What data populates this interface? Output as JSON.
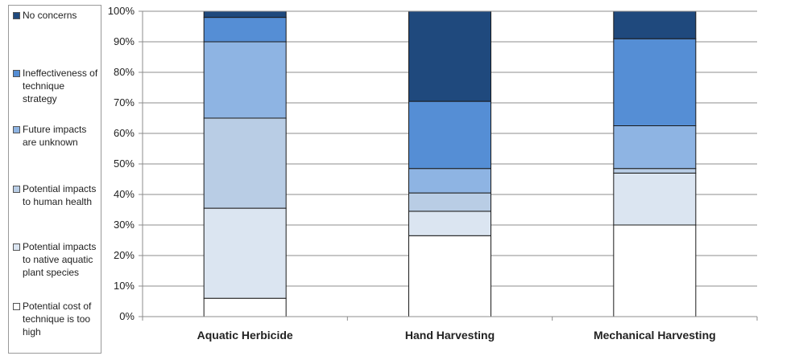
{
  "chart_data": {
    "type": "bar",
    "stacked": true,
    "categories": [
      "Aquatic Herbicide",
      "Hand Harvesting",
      "Mechanical Harvesting"
    ],
    "series": [
      {
        "name": "Potential cost of technique is too high",
        "color": "#ffffff",
        "values": [
          6,
          26.5,
          30
        ]
      },
      {
        "name": "Potential impacts to native aquatic plant species",
        "color": "#dbe5f1",
        "values": [
          29.5,
          8,
          17
        ]
      },
      {
        "name": "Potential impacts to human health",
        "color": "#b9cde5",
        "values": [
          29.5,
          6,
          1.5
        ]
      },
      {
        "name": "Future impacts are unknown",
        "color": "#8eb4e3",
        "values": [
          25,
          8,
          14
        ]
      },
      {
        "name": "Ineffectiveness of technique strategy",
        "color": "#558ed5",
        "values": [
          8,
          22,
          28.5
        ]
      },
      {
        "name": "No concerns",
        "color": "#1f497d",
        "values": [
          2,
          29.5,
          9
        ]
      }
    ],
    "yticks": [
      "0%",
      "10%",
      "20%",
      "30%",
      "40%",
      "50%",
      "60%",
      "70%",
      "80%",
      "90%",
      "100%"
    ],
    "ylim": [
      0,
      100
    ],
    "grid": true,
    "legend_position": "left"
  }
}
